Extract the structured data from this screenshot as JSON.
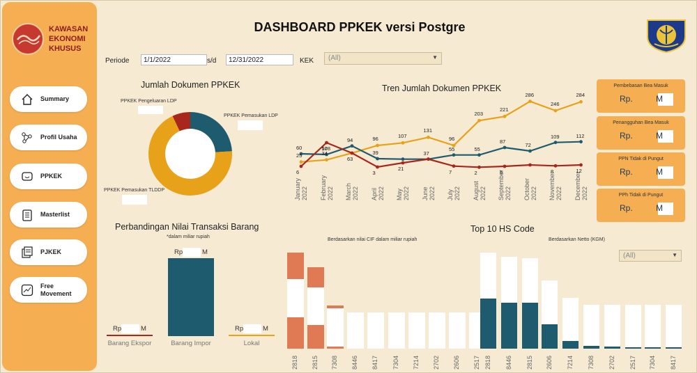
{
  "sidebar": {
    "logo_text": [
      "KAWASAN",
      "EKONOMI",
      "KHUSUS"
    ],
    "items": [
      {
        "label": "Summary",
        "icon": "home-icon"
      },
      {
        "label": "Profil Usaha",
        "icon": "network-icon"
      },
      {
        "label": "PPKEK",
        "icon": "message-icon"
      },
      {
        "label": "Masterlist",
        "icon": "clipboard-icon"
      },
      {
        "label": "PJKEK",
        "icon": "documents-icon"
      },
      {
        "label": "Free Movement",
        "icon": "trend-icon"
      }
    ]
  },
  "header": {
    "title": "DASHBOARD PPKEK versi Postgre"
  },
  "filters": {
    "periode_label": "Periode",
    "start_date": "1/1/2022",
    "sd_label": "s/d",
    "end_date": "12/31/2022",
    "kek_label": "KEK",
    "kek_value": "(All)"
  },
  "donut": {
    "title": "Jumlah Dokumen PPKEK",
    "labels": [
      "PPKEK Pengeluaran LDP",
      "PPKEK Pemasukan LDP",
      "PPKEK Pemasukan TLDDP"
    ],
    "colors": [
      "#a8271c",
      "#1e5b6e",
      "#e7a21a"
    ],
    "shares": [
      0.07,
      0.24,
      0.69
    ]
  },
  "trend": {
    "title": "Tren Jumlah Dokumen PPKEK",
    "months": [
      "January 2022",
      "February 2022",
      "March 2022",
      "April 2022",
      "May 2022",
      "June 2022",
      "July 2022",
      "August 2022",
      "September 2022",
      "October 2022",
      "November 2022",
      "December 2022"
    ],
    "series": [
      {
        "color": "#e7a21a",
        "values": [
          25,
          34,
          63,
          96,
          107,
          131,
          96,
          203,
          221,
          286,
          246,
          284
        ]
      },
      {
        "color": "#1e5b6e",
        "values": [
          60,
          57,
          94,
          39,
          37,
          37,
          55,
          55,
          87,
          72,
          109,
          112
        ]
      },
      {
        "color": "#a8271c",
        "values": [
          6,
          108,
          63,
          3,
          21,
          37,
          7,
          2,
          6,
          12,
          8,
          12
        ]
      }
    ],
    "labels_shown": [
      {
        "v": "60",
        "s": 1,
        "i": 0
      },
      {
        "v": "25",
        "s": 0,
        "i": 0
      },
      {
        "v": "6",
        "s": 2,
        "i": 0
      },
      {
        "v": "108",
        "s": 2,
        "i": 1
      },
      {
        "v": "57",
        "s": 1,
        "i": 1
      },
      {
        "v": "34",
        "s": 0,
        "i": 1
      },
      {
        "v": "94",
        "s": 1,
        "i": 2
      },
      {
        "v": "63",
        "s": 2,
        "i": 2
      },
      {
        "v": "96",
        "s": 0,
        "i": 3
      },
      {
        "v": "39",
        "s": 1,
        "i": 3
      },
      {
        "v": "3",
        "s": 2,
        "i": 3
      },
      {
        "v": "107",
        "s": 0,
        "i": 4
      },
      {
        "v": "21",
        "s": 2,
        "i": 4
      },
      {
        "v": "131",
        "s": 0,
        "i": 5
      },
      {
        "v": "37",
        "s": 1,
        "i": 5
      },
      {
        "v": "96",
        "s": 0,
        "i": 6
      },
      {
        "v": "55",
        "s": 1,
        "i": 6
      },
      {
        "v": "7",
        "s": 2,
        "i": 6
      },
      {
        "v": "203",
        "s": 0,
        "i": 7
      },
      {
        "v": "55",
        "s": 1,
        "i": 7
      },
      {
        "v": "2",
        "s": 2,
        "i": 7
      },
      {
        "v": "221",
        "s": 0,
        "i": 8
      },
      {
        "v": "87",
        "s": 1,
        "i": 8
      },
      {
        "v": "6",
        "s": 2,
        "i": 8
      },
      {
        "v": "286",
        "s": 0,
        "i": 9
      },
      {
        "v": "72",
        "s": 1,
        "i": 9
      },
      {
        "v": "246",
        "s": 0,
        "i": 10
      },
      {
        "v": "109",
        "s": 1,
        "i": 10
      },
      {
        "v": "8",
        "s": 2,
        "i": 10
      },
      {
        "v": "284",
        "s": 0,
        "i": 11
      },
      {
        "v": "112",
        "s": 1,
        "i": 11
      },
      {
        "v": "12",
        "s": 2,
        "i": 11
      }
    ]
  },
  "cards": [
    {
      "title": "Pembebasan Bea Masuk",
      "prefix": "Rp.",
      "suffix": "M"
    },
    {
      "title": "Penangguhan Bea Masuk",
      "prefix": "Rp.",
      "suffix": "M"
    },
    {
      "title": "PPN Tidak di Pungut",
      "prefix": "Rp.",
      "suffix": "M"
    },
    {
      "title": "PPh Tidak di Pungut",
      "prefix": "Rp.",
      "suffix": "M"
    }
  ],
  "transaksi": {
    "title": "Perbandingan Nilai Transaksi Barang",
    "note": "*dalam miliar rupiah",
    "bars": [
      {
        "label": "Barang Ekspor",
        "prefix": "Rp",
        "suffix": "M",
        "color": "#a8271c",
        "value": 0.005
      },
      {
        "label": "Barang Impor",
        "prefix": "Rp",
        "suffix": "M",
        "color": "#1e5b6e",
        "value": 1.0
      },
      {
        "label": "Lokal",
        "prefix": "Rp",
        "suffix": "M",
        "color": "#e7a21a",
        "value": 0.005
      }
    ]
  },
  "hs": {
    "title": "Top 10 HS Code",
    "left_subtitle": "Berdasarkan nilai CIF dalam miliar rupiah",
    "right_subtitle": "Berdasarkan Netto (KGM)",
    "select_value": "(All)",
    "left_codes": [
      "2818",
      "2815",
      "7308",
      "8446",
      "8417",
      "7304",
      "7214",
      "2702",
      "2606",
      "2517"
    ],
    "right_codes": [
      "2818",
      "8446",
      "2815",
      "2606",
      "7214",
      "7308",
      "2702",
      "2517",
      "7304",
      "8417"
    ]
  },
  "chart_data": [
    {
      "type": "pie",
      "title": "Jumlah Dokumen PPKEK",
      "categories": [
        "PPKEK Pengeluaran LDP",
        "PPKEK Pemasukan LDP",
        "PPKEK Pemasukan TLDDP"
      ],
      "values": [
        0.07,
        0.24,
        0.69
      ]
    },
    {
      "type": "line",
      "title": "Tren Jumlah Dokumen PPKEK",
      "x": [
        "January 2022",
        "February 2022",
        "March 2022",
        "April 2022",
        "May 2022",
        "June 2022",
        "July 2022",
        "August 2022",
        "September 2022",
        "October 2022",
        "November 2022",
        "December 2022"
      ],
      "series": [
        {
          "values": [
            25,
            34,
            63,
            96,
            107,
            131,
            96,
            203,
            221,
            286,
            246,
            284
          ]
        },
        {
          "values": [
            60,
            57,
            94,
            39,
            37,
            37,
            55,
            55,
            87,
            72,
            109,
            112
          ]
        },
        {
          "values": [
            6,
            108,
            63,
            3,
            21,
            37,
            7,
            2,
            6,
            12,
            8,
            12
          ]
        }
      ]
    },
    {
      "type": "bar",
      "title": "Perbandingan Nilai Transaksi Barang",
      "categories": [
        "Barang Ekspor",
        "Barang Impor",
        "Lokal"
      ]
    },
    {
      "type": "bar",
      "title": "Top 10 HS Code",
      "categories": [
        "2818",
        "2815",
        "7308",
        "8446",
        "8417",
        "7304",
        "7214",
        "2702",
        "2606",
        "2517"
      ]
    },
    {
      "type": "bar",
      "title": "Top 10 HS Code",
      "categories": [
        "2818",
        "8446",
        "2815",
        "2606",
        "7214",
        "7308",
        "2702",
        "2517",
        "7304",
        "8417"
      ]
    }
  ]
}
